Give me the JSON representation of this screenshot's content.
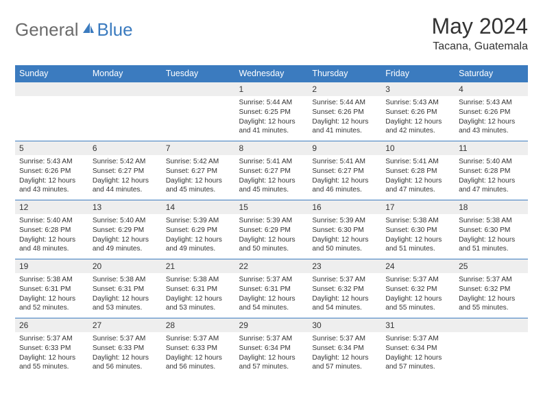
{
  "logo": {
    "text_gray": "General",
    "text_blue": "Blue"
  },
  "title": "May 2024",
  "location": "Tacana, Guatemala",
  "day_headers": [
    "Sunday",
    "Monday",
    "Tuesday",
    "Wednesday",
    "Thursday",
    "Friday",
    "Saturday"
  ],
  "colors": {
    "header_bg": "#3b7bbf",
    "header_text": "#ffffff",
    "daynum_bg": "#eeeeee",
    "border": "#3b7bbf",
    "logo_gray": "#6b6b6b",
    "logo_blue": "#3b7bbf",
    "text": "#333333",
    "page_bg": "#ffffff"
  },
  "typography": {
    "title_fontsize": 32,
    "location_fontsize": 16,
    "header_fontsize": 12.5,
    "daynum_fontsize": 12,
    "cell_fontsize": 10.2,
    "logo_fontsize": 26
  },
  "layout": {
    "cols": 7,
    "rows": 5,
    "leading_blanks": 3
  },
  "days": [
    {
      "n": "1",
      "sunrise": "5:44 AM",
      "sunset": "6:25 PM",
      "daylight": "12 hours and 41 minutes."
    },
    {
      "n": "2",
      "sunrise": "5:44 AM",
      "sunset": "6:26 PM",
      "daylight": "12 hours and 41 minutes."
    },
    {
      "n": "3",
      "sunrise": "5:43 AM",
      "sunset": "6:26 PM",
      "daylight": "12 hours and 42 minutes."
    },
    {
      "n": "4",
      "sunrise": "5:43 AM",
      "sunset": "6:26 PM",
      "daylight": "12 hours and 43 minutes."
    },
    {
      "n": "5",
      "sunrise": "5:43 AM",
      "sunset": "6:26 PM",
      "daylight": "12 hours and 43 minutes."
    },
    {
      "n": "6",
      "sunrise": "5:42 AM",
      "sunset": "6:27 PM",
      "daylight": "12 hours and 44 minutes."
    },
    {
      "n": "7",
      "sunrise": "5:42 AM",
      "sunset": "6:27 PM",
      "daylight": "12 hours and 45 minutes."
    },
    {
      "n": "8",
      "sunrise": "5:41 AM",
      "sunset": "6:27 PM",
      "daylight": "12 hours and 45 minutes."
    },
    {
      "n": "9",
      "sunrise": "5:41 AM",
      "sunset": "6:27 PM",
      "daylight": "12 hours and 46 minutes."
    },
    {
      "n": "10",
      "sunrise": "5:41 AM",
      "sunset": "6:28 PM",
      "daylight": "12 hours and 47 minutes."
    },
    {
      "n": "11",
      "sunrise": "5:40 AM",
      "sunset": "6:28 PM",
      "daylight": "12 hours and 47 minutes."
    },
    {
      "n": "12",
      "sunrise": "5:40 AM",
      "sunset": "6:28 PM",
      "daylight": "12 hours and 48 minutes."
    },
    {
      "n": "13",
      "sunrise": "5:40 AM",
      "sunset": "6:29 PM",
      "daylight": "12 hours and 49 minutes."
    },
    {
      "n": "14",
      "sunrise": "5:39 AM",
      "sunset": "6:29 PM",
      "daylight": "12 hours and 49 minutes."
    },
    {
      "n": "15",
      "sunrise": "5:39 AM",
      "sunset": "6:29 PM",
      "daylight": "12 hours and 50 minutes."
    },
    {
      "n": "16",
      "sunrise": "5:39 AM",
      "sunset": "6:30 PM",
      "daylight": "12 hours and 50 minutes."
    },
    {
      "n": "17",
      "sunrise": "5:38 AM",
      "sunset": "6:30 PM",
      "daylight": "12 hours and 51 minutes."
    },
    {
      "n": "18",
      "sunrise": "5:38 AM",
      "sunset": "6:30 PM",
      "daylight": "12 hours and 51 minutes."
    },
    {
      "n": "19",
      "sunrise": "5:38 AM",
      "sunset": "6:31 PM",
      "daylight": "12 hours and 52 minutes."
    },
    {
      "n": "20",
      "sunrise": "5:38 AM",
      "sunset": "6:31 PM",
      "daylight": "12 hours and 53 minutes."
    },
    {
      "n": "21",
      "sunrise": "5:38 AM",
      "sunset": "6:31 PM",
      "daylight": "12 hours and 53 minutes."
    },
    {
      "n": "22",
      "sunrise": "5:37 AM",
      "sunset": "6:31 PM",
      "daylight": "12 hours and 54 minutes."
    },
    {
      "n": "23",
      "sunrise": "5:37 AM",
      "sunset": "6:32 PM",
      "daylight": "12 hours and 54 minutes."
    },
    {
      "n": "24",
      "sunrise": "5:37 AM",
      "sunset": "6:32 PM",
      "daylight": "12 hours and 55 minutes."
    },
    {
      "n": "25",
      "sunrise": "5:37 AM",
      "sunset": "6:32 PM",
      "daylight": "12 hours and 55 minutes."
    },
    {
      "n": "26",
      "sunrise": "5:37 AM",
      "sunset": "6:33 PM",
      "daylight": "12 hours and 55 minutes."
    },
    {
      "n": "27",
      "sunrise": "5:37 AM",
      "sunset": "6:33 PM",
      "daylight": "12 hours and 56 minutes."
    },
    {
      "n": "28",
      "sunrise": "5:37 AM",
      "sunset": "6:33 PM",
      "daylight": "12 hours and 56 minutes."
    },
    {
      "n": "29",
      "sunrise": "5:37 AM",
      "sunset": "6:34 PM",
      "daylight": "12 hours and 57 minutes."
    },
    {
      "n": "30",
      "sunrise": "5:37 AM",
      "sunset": "6:34 PM",
      "daylight": "12 hours and 57 minutes."
    },
    {
      "n": "31",
      "sunrise": "5:37 AM",
      "sunset": "6:34 PM",
      "daylight": "12 hours and 57 minutes."
    }
  ],
  "labels": {
    "sunrise": "Sunrise: ",
    "sunset": "Sunset: ",
    "daylight": "Daylight: "
  }
}
